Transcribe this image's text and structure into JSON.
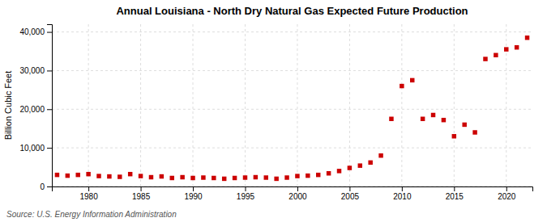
{
  "chart_data": {
    "type": "scatter",
    "title": "Annual Louisiana - North Dry Natural Gas Expected Future Production",
    "ylabel": "Billion Cubic Feet",
    "source": "Source: U.S. Energy Information Administration",
    "color": "#cc0000",
    "marker": "square",
    "grid": true,
    "xlim": [
      1976.5,
      2022.5
    ],
    "ylim": [
      0,
      42000
    ],
    "xticks": [
      1980,
      1985,
      1990,
      1995,
      2000,
      2005,
      2010,
      2015,
      2020
    ],
    "yticks": [
      0,
      {
        "value": 10000,
        "label": "10,000"
      },
      {
        "value": 20000,
        "label": "20,000"
      },
      {
        "value": 30000,
        "label": "30,000"
      },
      {
        "value": 40000,
        "label": "40,000"
      }
    ],
    "x": [
      1977,
      1978,
      1979,
      1980,
      1981,
      1982,
      1983,
      1984,
      1985,
      1986,
      1987,
      1988,
      1989,
      1990,
      1991,
      1992,
      1993,
      1994,
      1995,
      1996,
      1997,
      1998,
      1999,
      2000,
      2001,
      2002,
      2003,
      2004,
      2005,
      2006,
      2007,
      2008,
      2009,
      2010,
      2011,
      2012,
      2013,
      2014,
      2015,
      2016,
      2017,
      2018,
      2019,
      2020,
      2021,
      2022
    ],
    "values": [
      3000,
      2800,
      3000,
      3200,
      2700,
      2600,
      2500,
      3200,
      2700,
      2400,
      2600,
      2200,
      2400,
      2200,
      2300,
      2200,
      2000,
      2200,
      2300,
      2400,
      2300,
      2000,
      2300,
      2700,
      2800,
      3000,
      3400,
      4000,
      4800,
      5400,
      6200,
      8000,
      17500,
      26000,
      27500,
      17500,
      18500,
      17200,
      13000,
      16000,
      14000,
      33000,
      34000,
      35500,
      36000,
      38500
    ]
  }
}
